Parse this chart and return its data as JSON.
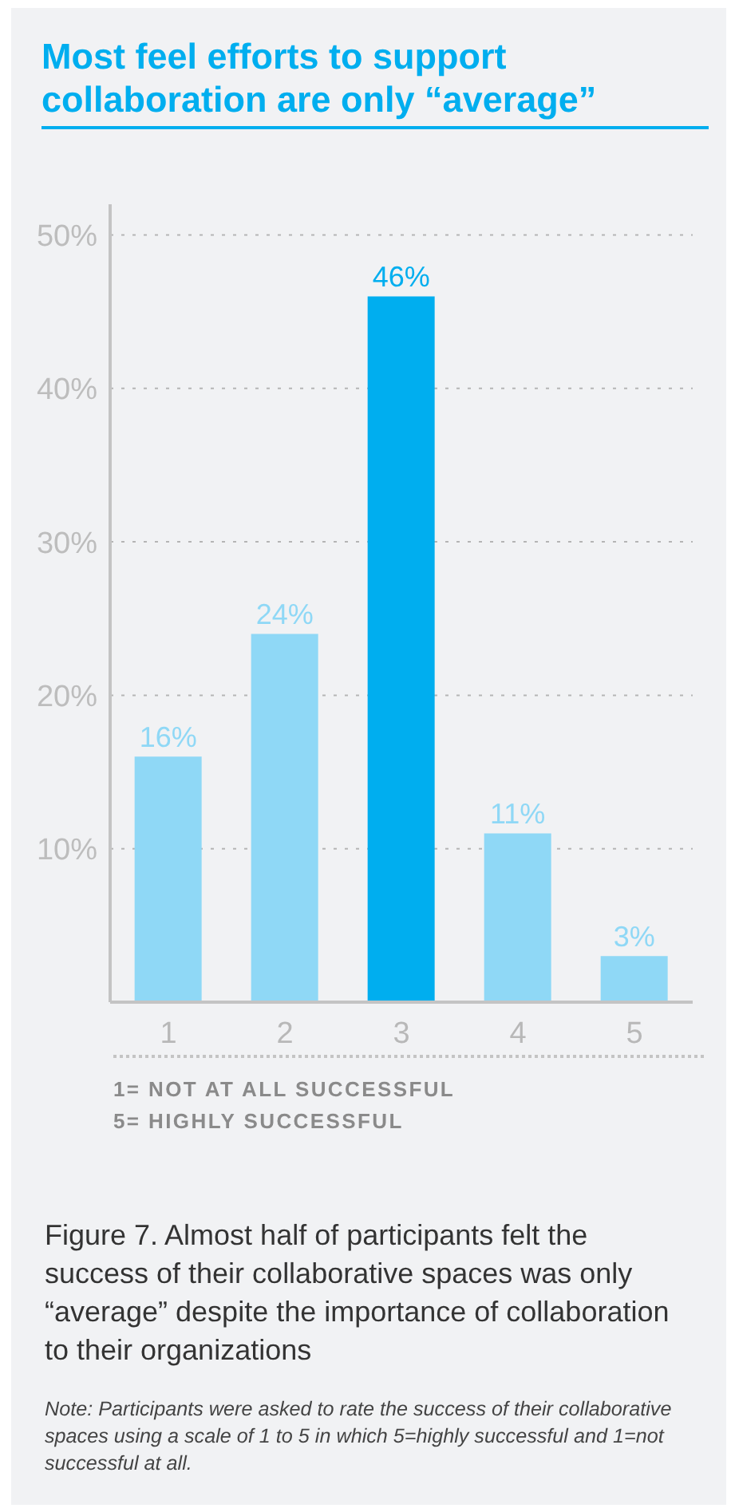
{
  "chart_data": {
    "type": "bar",
    "title": "Most feel efforts to support collaboration are only “average”",
    "categories": [
      "1",
      "2",
      "3",
      "4",
      "5"
    ],
    "values": [
      16,
      24,
      46,
      11,
      3
    ],
    "colors": [
      "#8fd8f6",
      "#8fd8f6",
      "#00aeef",
      "#8fd8f6",
      "#8fd8f6"
    ],
    "value_labels": [
      "16%",
      "24%",
      "46%",
      "11%",
      "3%"
    ],
    "ylim": [
      0,
      52
    ],
    "yticks": [
      {
        "value": 10,
        "label": "10%"
      },
      {
        "value": 20,
        "label": "20%"
      },
      {
        "value": 30,
        "label": "30%"
      },
      {
        "value": 40,
        "label": "40%"
      },
      {
        "value": 50,
        "label": "50%"
      }
    ],
    "grid": "y",
    "annotations": [
      "1= NOT AT ALL SUCCESSFUL",
      "5= HIGHLY SUCCESSFUL",
      "Figure 7. Almost half of participants felt the success of their collaborative spaces was only “average” despite the importance of collaboration to their organizations",
      "Note: Participants were asked to rate the success of their collaborative spaces using a scale of 1 to 5 in which 5=highly successful and 1=not successful at all."
    ]
  }
}
